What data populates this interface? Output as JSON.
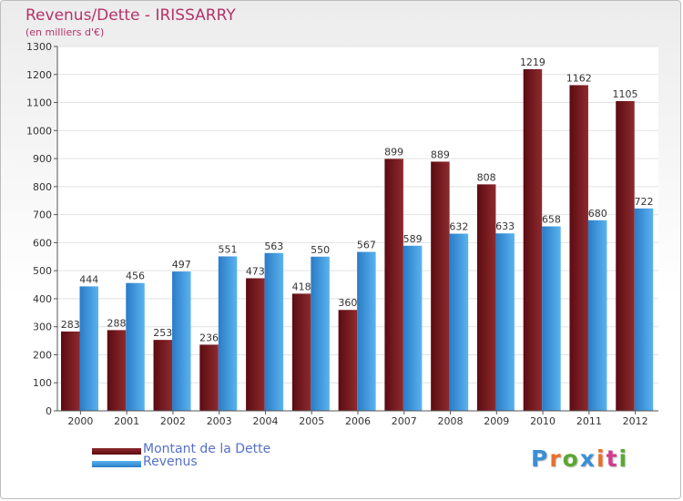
{
  "chart": {
    "title": "Revenus/Dette - IRISSARRY",
    "subtitle": "(en milliers d'€)"
  },
  "colors": {
    "debt": "#7a1a1f",
    "revenue": "#3d9be0",
    "title": "#b4326a",
    "legend_text": "#5570c8",
    "grid": "#e2e2e2"
  },
  "legend": {
    "debt_label": "Montant de la Dette",
    "revenue_label": "Revenus"
  },
  "brand": {
    "letters": [
      "P",
      "r",
      "o",
      "x",
      "i",
      "t",
      "i"
    ],
    "colors": [
      "#3a8fd6",
      "#e8702a",
      "#5aa832",
      "#3a8fd6",
      "#e8702a",
      "#d33d8c",
      "#5aa832"
    ]
  },
  "chart_data": {
    "type": "bar",
    "categories": [
      "2000",
      "2001",
      "2002",
      "2003",
      "2004",
      "2005",
      "2006",
      "2007",
      "2008",
      "2009",
      "2010",
      "2011",
      "2012"
    ],
    "series": [
      {
        "name": "Montant de la Dette",
        "values": [
          283,
          288,
          253,
          236,
          473,
          418,
          360,
          899,
          889,
          808,
          1219,
          1162,
          1105
        ]
      },
      {
        "name": "Revenus",
        "values": [
          444,
          456,
          497,
          551,
          563,
          550,
          567,
          589,
          632,
          633,
          658,
          680,
          722
        ]
      }
    ],
    "ylim": [
      0,
      1300
    ],
    "yticks": [
      0,
      100,
      200,
      300,
      400,
      500,
      600,
      700,
      800,
      900,
      1000,
      1100,
      1200,
      1300
    ],
    "grid": true,
    "legend_position": "bottom-left"
  }
}
